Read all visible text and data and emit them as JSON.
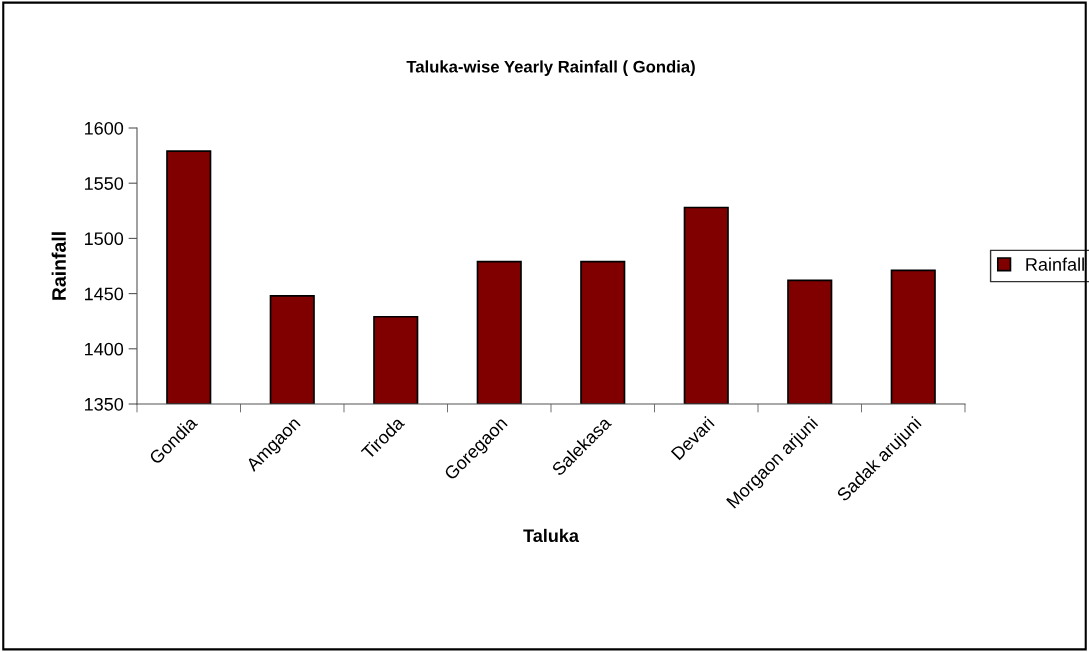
{
  "chart_data": {
    "type": "bar",
    "title": "Taluka-wise Yearly Rainfall ( Gondia)",
    "xlabel": "Taluka",
    "ylabel": "Rainfall",
    "categories": [
      "Gondia",
      "Amgaon",
      "Tiroda",
      "Goregaon",
      "Salekasa",
      "Devari",
      "Morgaon arjuni",
      "Sadak arujuni"
    ],
    "series": [
      {
        "name": "Rainfall",
        "color": "#800000",
        "values": [
          1579,
          1448,
          1429,
          1479,
          1479,
          1528,
          1462,
          1471
        ]
      }
    ],
    "ylim": [
      1350,
      1600
    ],
    "yticks": [
      1350,
      1400,
      1450,
      1500,
      1550,
      1600
    ],
    "grid": false,
    "legend": "right"
  }
}
